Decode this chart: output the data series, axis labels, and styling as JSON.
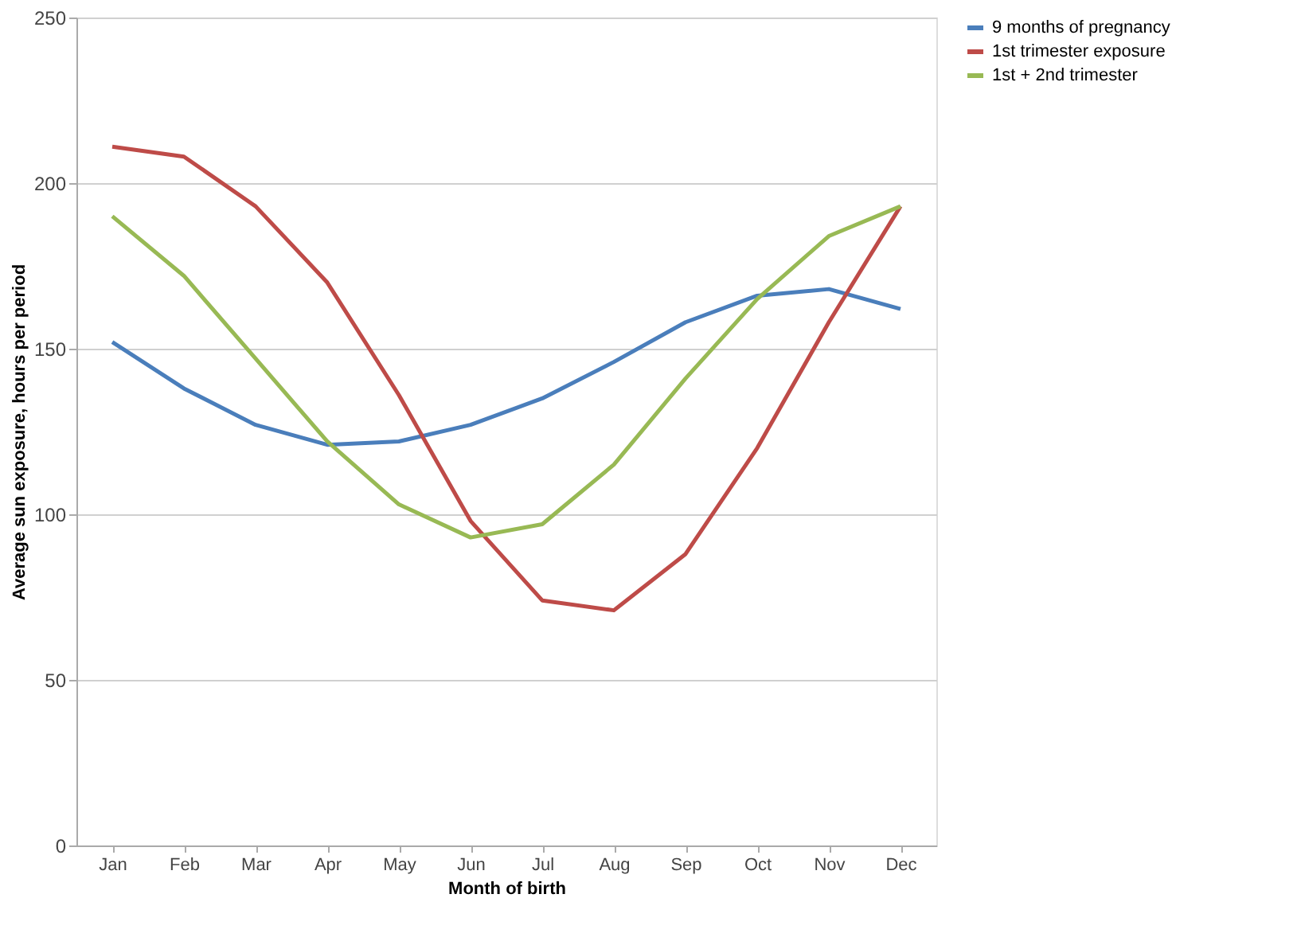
{
  "chart_data": {
    "type": "line",
    "xlabel": "Month of birth",
    "ylabel": "Average sun exposure, hours per period",
    "categories": [
      "Jan",
      "Feb",
      "Mar",
      "Apr",
      "May",
      "Jun",
      "Jul",
      "Aug",
      "Sep",
      "Oct",
      "Nov",
      "Dec"
    ],
    "series": [
      {
        "name": "9 months of pregnancy",
        "color": "#4a7ebb",
        "values": [
          152,
          138,
          127,
          121,
          122,
          127,
          135,
          146,
          158,
          166,
          168,
          162
        ]
      },
      {
        "name": "1st trimester exposure",
        "color": "#be4b48",
        "values": [
          211,
          208,
          193,
          170,
          136,
          98,
          74,
          71,
          88,
          120,
          158,
          193
        ]
      },
      {
        "name": "1st + 2nd trimester",
        "color": "#98b954",
        "values": [
          190,
          172,
          147,
          122,
          103,
          93,
          97,
          115,
          141,
          165,
          184,
          193
        ]
      }
    ],
    "ylim": [
      0,
      250
    ],
    "yticks": [
      0,
      50,
      100,
      150,
      200,
      250
    ],
    "grid": "y",
    "legend": "right",
    "marker": "none",
    "line_style": "solid"
  }
}
